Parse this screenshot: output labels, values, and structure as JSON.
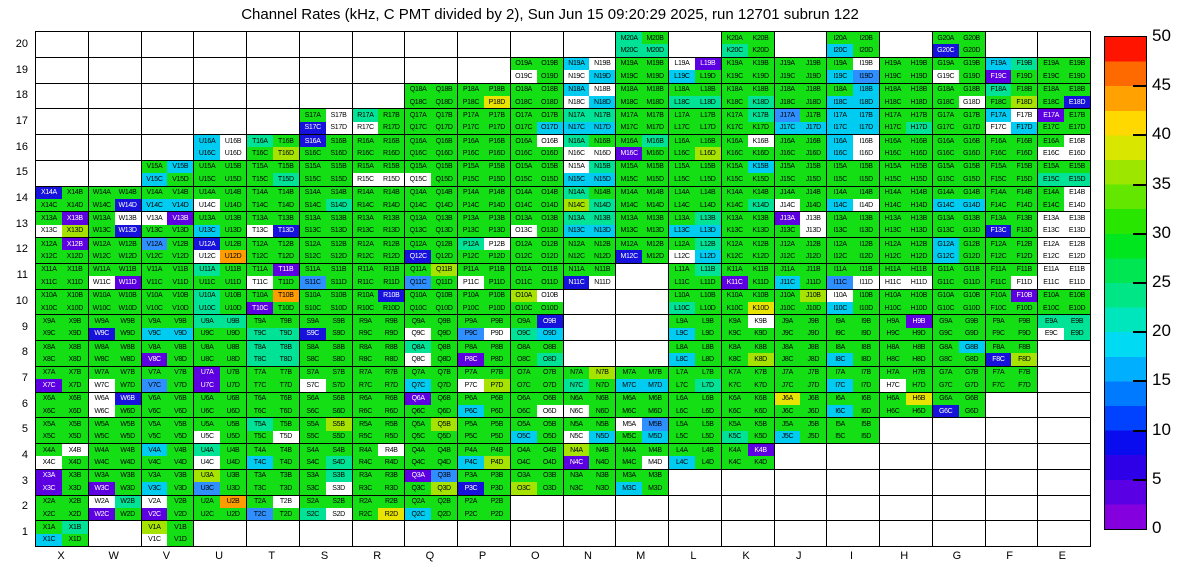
{
  "title": "Channel Rates (kHz, C PMT divided by 2), Sun Jun 15 09:20:29 2025, run 12701 subrun 122",
  "axes": {
    "x_labels": [
      "X",
      "W",
      "V",
      "U",
      "T",
      "S",
      "R",
      "Q",
      "P",
      "O",
      "N",
      "M",
      "L",
      "K",
      "J",
      "I",
      "H",
      "G",
      "F",
      "E"
    ],
    "y_labels": [
      "1",
      "2",
      "3",
      "4",
      "5",
      "6",
      "7",
      "8",
      "9",
      "10",
      "11",
      "12",
      "13",
      "14",
      "15",
      "16",
      "17",
      "18",
      "19",
      "20"
    ]
  },
  "colorbar": {
    "min": 0,
    "max": 50,
    "ticks": [
      0,
      5,
      10,
      15,
      20,
      25,
      30,
      35,
      40,
      45,
      50
    ],
    "stops": [
      "#8500df",
      "#5a00e4",
      "#2e00e8",
      "#0a0cf0",
      "#0042ff",
      "#007aff",
      "#00b0ff",
      "#00daf2",
      "#00e6bc",
      "#00e687",
      "#00e653",
      "#00e61e",
      "#28e600",
      "#63e600",
      "#9de600",
      "#d8e600",
      "#ffd800",
      "#ffa100",
      "#ff6a00",
      "#ff1400"
    ]
  },
  "chart_data": {
    "type": "heatmap",
    "unit": "kHz",
    "title": "Channel Rates (kHz, C PMT divided by 2)",
    "run_info": "run 12701 subrun 122",
    "timestamp": "Sun Jun 15 09:20:29 2025",
    "columns": [
      "X",
      "W",
      "V",
      "U",
      "T",
      "S",
      "R",
      "Q",
      "P",
      "O",
      "N",
      "M",
      "L",
      "K",
      "J",
      "I",
      "H",
      "G",
      "F",
      "E"
    ],
    "row_order": [
      20,
      19,
      18,
      17,
      16,
      15,
      14,
      13,
      12,
      11,
      10,
      9,
      8,
      7,
      6,
      5,
      4,
      3,
      2,
      1
    ],
    "subcell_order": "ABCD",
    "label_format": "{column}{row}{subcell}",
    "absent_code": ".",
    "code_legend": {
      "g": {
        "color": "#14df14",
        "approx_kHz": 27,
        "meaning": "green"
      },
      "t": {
        "color": "#00e296",
        "approx_kHz": 22,
        "meaning": "teal-green"
      },
      "c": {
        "color": "#00ccf2",
        "approx_kHz": 15,
        "meaning": "cyan"
      },
      "b": {
        "color": "#2f8fff",
        "approx_kHz": 11,
        "meaning": "azure-blue"
      },
      "B": {
        "color": "#1612dc",
        "approx_kHz": 6,
        "meaning": "deep-blue"
      },
      "v": {
        "color": "#5c00e2",
        "approx_kHz": 2,
        "meaning": "violet"
      },
      "Y": {
        "color": "#a7e300",
        "approx_kHz": 33,
        "meaning": "yellow-green"
      },
      "y": {
        "color": "#e8e300",
        "approx_kHz": 37,
        "meaning": "yellow"
      },
      "o": {
        "color": "#ff9c00",
        "approx_kHz": 42,
        "meaning": "orange"
      },
      "w": {
        "color": "#ffffff",
        "approx_kHz": 0,
        "meaning": "white / no data"
      }
    },
    "cells": {
      "20": ".... .... .... .... .... .... .... .... .... .... .... tgtt .... ggtg .... ggcg .... ggBg .... ....",
      "19": ".... .... .... .... .... .... .... .... .... ggwg cwwc gggg wvcg gggg gggg gwcb gggg ggwg ctvg gggg",
      "18": ".... .... .... .... .... .... .... gggg gggy gggg cwwc gggg ggtt gggt gggg gccc gggg gggw tggY gggB",
      "17": ".... .... .... .... .... gwBw tgwg gggg gggg gggc ttcc gggg gggg gtgg bgcc cccc gggt gggg cwwc vggg",
      "16": ".... .... .... cwcw tggY Bggg gggg gggg gggg gwgg tgww gtvg gggY gwgg gggg cwcw gggg gggg gggg gwww",
      "15": ".... .... gccg gggg gggt gggg ggww ggwg gggg gggg wtcc gggg gggg gcgg gggg gggg gggg gggg gggg ggtt",
      "14": "Bggg gggB ggcc ggwg gggg gggt gggg gggg gggg gggg tgYt gggg gggg gggt ggwg ggcw gggg ggcc gggg gwgw",
      "13": "gvwY gwgB wvgg ggcg ggwB gggg gggg gggg gggg ggwg ttcc gggg gtcc gggg vwgw gggg gggg gggg ggBg wwww",
      "12": "gvgg gggg bggg Bgwo gggg gggg gggg ggBg twgg gggg gggg ggBg gtwc gggg gggg gggg gggg cgcg gggg wwww",
      "11": "gggg ggwv gggg tggg gvwg ggbg gggg gYbg ggwg gggg ggBw .... gtgg ggvg ggcg ggbw ggww gggg gggw wwww",
      "10": "gggg gggg gggg tgtg govg gggg gBgg gggg gggg Ywgg .... .... ggtg gggy gYgg wgcg gggg gggg gvgg gggg",
      "9": "gggg ggBg ggcc ttgg ggtt ggBg gggg ggwg ggbw gBtc .... .... ggcg gwgg gggg gggg gvgg gggg gggg ttwt",
      "8": "gggg gggg ggvg gggg tttt gggg gggg tgwg ggvg gggt .... .... ggcg gggY gggg ggcg gggg gcgg ggBY ....",
      "7": "ggvg ggwg ggbg vgvg gggg ggwg gggg ggcg ggwY gggg gYtg ggcc gggt gggg gggg ggcg ggwg gggg gggg ....",
      "6": "gggg wBwg gggg gggg gggg gggg gggg vggg ggcg gggw ggwg gggg gggg gggg yggg ggcg gygg ggBg .... ....",
      "5": "gggg gggg gggg ggwg tggw gYgg gggg gYgg gggg ggcg ggwc wbgc gggg ggtg ggcg gggg .... .... .... ....",
      "4": "gwwg gggg cggg tgwg ggcg gggt gwgg gggg ggcY gggg Ygvg gggw ggcg gvgg .... .... .... .... .... ....",
      "3": "vgvg ggvg ggcg Ygbg gggg gtgw gggg vbgY ggBg ggYg gggg ggcg .... .... .... .... .... .... .... ....",
      "2": "gggg wtvg wgvg gogg gwbg ggtw gggy ggcg gggg .... .... .... .... .... .... .... .... .... .... ....",
      "1": "gtcg .... Ygwg .... .... .... .... .... .... .... .... .... .... .... .... .... .... .... .... ...."
    }
  }
}
